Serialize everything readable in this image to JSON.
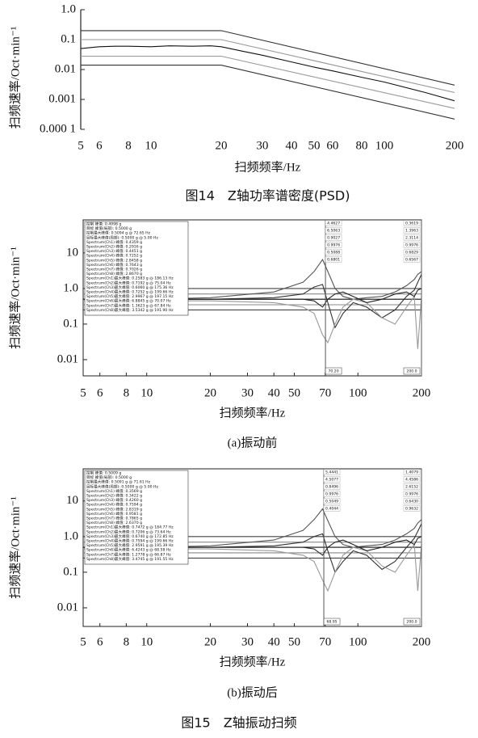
{
  "chart_data": [
    {
      "type": "line",
      "log_x": true,
      "log_y": true,
      "y_label": "扫频速率/Oct·min⁻¹",
      "x_label": "扫频频率/Hz",
      "caption": "图14　Z轴功率谱密度(PSD)",
      "xlim": [
        5,
        200
      ],
      "xticks": [
        5,
        6,
        8,
        10,
        20,
        30,
        40,
        50,
        60,
        80,
        100,
        200
      ],
      "ylim": [
        0.0001,
        1
      ],
      "yticks": [
        {
          "value": 1,
          "label": "1.0"
        },
        0.1,
        0.01,
        0.001,
        {
          "value": 0.0001,
          "label": "0.000 1"
        }
      ],
      "series": [
        {
          "color": "#333333",
          "x": [
            5,
            20,
            200
          ],
          "values": [
            0.2,
            0.2,
            0.003
          ]
        },
        {
          "color": "#999999",
          "x": [
            5,
            20,
            200
          ],
          "values": [
            0.1,
            0.1,
            0.0017
          ]
        },
        {
          "color": "#111111",
          "x": [
            5,
            6,
            7,
            8,
            10,
            12,
            15,
            18,
            20,
            25,
            30,
            40,
            50,
            60,
            80,
            100,
            150,
            200
          ],
          "values": [
            0.05,
            0.058,
            0.06,
            0.06,
            0.058,
            0.062,
            0.06,
            0.062,
            0.058,
            0.04,
            0.03,
            0.018,
            0.012,
            0.009,
            0.0055,
            0.0038,
            0.0017,
            0.0009
          ]
        },
        {
          "color": "#999999",
          "x": [
            5,
            20,
            200
          ],
          "values": [
            0.028,
            0.028,
            0.0005
          ]
        },
        {
          "color": "#333333",
          "x": [
            5,
            20,
            200
          ],
          "values": [
            0.014,
            0.014,
            0.00022
          ]
        }
      ]
    },
    {
      "type": "line",
      "log_x": true,
      "log_y": true,
      "y_label": "扫频速率/Oct·min⁻¹",
      "x_label": "扫频频率/Hz",
      "caption": "(a)振动前",
      "xlim": [
        5,
        200
      ],
      "xticks": [
        5,
        6,
        8,
        10,
        20,
        30,
        40,
        50,
        70,
        100,
        200
      ],
      "ylim": [
        0.0035,
        85
      ],
      "yticks": [
        10,
        {
          "value": 1,
          "label": "1.0"
        },
        0.1,
        0.01
      ],
      "series": [
        {
          "color": "#444444",
          "x": [
            5,
            200
          ],
          "values": [
            1.0,
            1.0
          ]
        },
        {
          "color": "#888888",
          "x": [
            5,
            200
          ],
          "values": [
            0.7,
            0.7
          ]
        },
        {
          "color": "#111111",
          "x": [
            5,
            200
          ],
          "values": [
            0.5,
            0.5
          ]
        },
        {
          "color": "#888888",
          "x": [
            5,
            200
          ],
          "values": [
            0.35,
            0.35
          ]
        },
        {
          "color": "#444444",
          "x": [
            5,
            200
          ],
          "values": [
            0.25,
            0.25
          ]
        },
        {
          "color": "#555555",
          "x": [
            5,
            10,
            20,
            40,
            55,
            62,
            68,
            72,
            78,
            85,
            95,
            110,
            130,
            150,
            170,
            185,
            192,
            200
          ],
          "values": [
            0.5,
            0.5,
            0.55,
            0.8,
            1.5,
            3,
            6.5,
            3,
            1,
            0.6,
            0.5,
            0.55,
            0.6,
            0.8,
            1.2,
            1.8,
            2.5,
            3
          ]
        },
        {
          "color": "#333333",
          "x": [
            5,
            10,
            20,
            40,
            55,
            62,
            68,
            72,
            78,
            85,
            95,
            110,
            130,
            150,
            170,
            185,
            192,
            200
          ],
          "values": [
            0.5,
            0.5,
            0.5,
            0.55,
            0.7,
            1.1,
            1.3,
            0.4,
            0.08,
            0.2,
            0.4,
            0.3,
            0.15,
            0.25,
            0.6,
            0.9,
            1.5,
            2.5
          ]
        },
        {
          "color": "#999999",
          "x": [
            5,
            10,
            20,
            40,
            55,
            62,
            68,
            72,
            78,
            85,
            95,
            110,
            130,
            150,
            170,
            185,
            192,
            200
          ],
          "values": [
            0.45,
            0.45,
            0.45,
            0.4,
            0.3,
            0.2,
            0.05,
            0.03,
            0.1,
            0.3,
            0.5,
            0.4,
            0.15,
            0.1,
            0.3,
            0.6,
            0.02,
            0.6
          ]
        },
        {
          "color": "#222222",
          "x": [
            5,
            10,
            20,
            40,
            55,
            62,
            68,
            72,
            78,
            85,
            95,
            110,
            130,
            150,
            170,
            185,
            192,
            200
          ],
          "values": [
            0.5,
            0.5,
            0.5,
            0.5,
            0.5,
            0.45,
            0.3,
            0.5,
            0.7,
            0.8,
            0.6,
            0.4,
            0.5,
            0.7,
            0.8,
            0.6,
            0.9,
            1.0
          ]
        }
      ],
      "legend_box": [
        "控制 峰值: 0.4998 g",
        "目标 峰值(局部): 0.5000 g",
        "控制最大峰值: 0.5094 g @ 72.65 Hz",
        "目标最大峰值(局部): 0.5000 g @ 5.00 Hz",
        "Spectrum(Ch1) 峰值: 0.4359 g",
        "Spectrum(Ch2) 峰值: 0.2916 g",
        "Spectrum(Ch3) 峰值: 0.4451 g",
        "Spectrum(Ch4) 峰值: 0.7252 g",
        "Spectrum(Ch5) 峰值: 2.8458 g",
        "Spectrum(Ch6) 峰值: 0.7643 g",
        "Spectrum(Ch7) 峰值: 0.7026 g",
        "Spectrum(Ch8) 峰值: 2.8670 g",
        "Spectrum(Ch1)最大峰值: 0.2583 g @ 186.13 Hz",
        "Spectrum(Ch2)最大峰值: 0.7192 g @ 75.04 Hz",
        "Spectrum(Ch3)最大峰值: 0.6060 g @ 175.36 Hz",
        "Spectrum(Ch4)最大峰值: 0.7252 g @ 199.66 Hz",
        "Spectrum(Ch5)最大峰值: 2.9967 g @ 197.15 Hz",
        "Spectrum(Ch6)最大峰值: 6.8845 g @ 70.07 Hz",
        "Spectrum(Ch7)最大峰值: 1.3623 g @ 67.84 Hz",
        "Spectrum(Ch8)最大峰值: 3.5342 g @ 191.90 Hz"
      ],
      "cursors": [
        {
          "x": {
            "value": 70.2,
            "label": "70.20"
          },
          "readouts": [
            "4.4627",
            "6.5063",
            "0.9027",
            "0.9976",
            "0.5088",
            "0.6801"
          ]
        },
        {
          "x": {
            "value": 200,
            "label": "200.0"
          },
          "readouts": [
            "0.3619",
            "1.3963",
            "2.3114",
            "0.9976",
            "0.6829",
            "0.6567"
          ]
        }
      ]
    },
    {
      "type": "line",
      "log_x": true,
      "log_y": true,
      "y_label": "扫频速率/Oct·min⁻¹",
      "x_label": "扫频频率/Hz",
      "caption": "(b)振动后",
      "xlim": [
        5,
        200
      ],
      "xticks": [
        5,
        6,
        8,
        10,
        20,
        30,
        40,
        50,
        70,
        100,
        200
      ],
      "ylim": [
        0.003,
        80
      ],
      "yticks": [
        10,
        {
          "value": 1,
          "label": "1.0"
        },
        0.1,
        0.01
      ],
      "series": [
        {
          "color": "#444444",
          "x": [
            5,
            200
          ],
          "values": [
            1.0,
            1.0
          ]
        },
        {
          "color": "#888888",
          "x": [
            5,
            200
          ],
          "values": [
            0.7,
            0.7
          ]
        },
        {
          "color": "#111111",
          "x": [
            5,
            200
          ],
          "values": [
            0.5,
            0.5
          ]
        },
        {
          "color": "#888888",
          "x": [
            5,
            200
          ],
          "values": [
            0.35,
            0.35
          ]
        },
        {
          "color": "#444444",
          "x": [
            5,
            200
          ],
          "values": [
            0.25,
            0.25
          ]
        },
        {
          "color": "#555555",
          "x": [
            5,
            10,
            20,
            40,
            55,
            62,
            68,
            72,
            78,
            85,
            95,
            110,
            130,
            150,
            170,
            185,
            192,
            200
          ],
          "values": [
            0.5,
            0.5,
            0.55,
            0.8,
            1.5,
            3,
            6,
            2.8,
            1,
            0.6,
            0.5,
            0.55,
            0.6,
            0.8,
            1.2,
            1.7,
            2.4,
            3
          ]
        },
        {
          "color": "#333333",
          "x": [
            5,
            10,
            20,
            40,
            55,
            62,
            68,
            72,
            78,
            85,
            95,
            110,
            130,
            150,
            170,
            185,
            192,
            200
          ],
          "values": [
            0.5,
            0.5,
            0.5,
            0.55,
            0.7,
            1.0,
            1.2,
            0.4,
            0.1,
            0.2,
            0.4,
            0.3,
            0.12,
            0.2,
            0.5,
            0.9,
            1.4,
            2.3
          ]
        },
        {
          "color": "#999999",
          "x": [
            5,
            10,
            20,
            40,
            55,
            62,
            68,
            72,
            78,
            85,
            95,
            110,
            130,
            150,
            170,
            185,
            192,
            200
          ],
          "values": [
            0.45,
            0.45,
            0.45,
            0.4,
            0.3,
            0.2,
            0.06,
            0.03,
            0.1,
            0.3,
            0.5,
            0.4,
            0.15,
            0.1,
            0.3,
            0.6,
            0.03,
            0.6
          ]
        },
        {
          "color": "#222222",
          "x": [
            5,
            10,
            20,
            40,
            55,
            62,
            68,
            72,
            78,
            85,
            95,
            110,
            130,
            150,
            170,
            185,
            192,
            200
          ],
          "values": [
            0.5,
            0.5,
            0.5,
            0.5,
            0.5,
            0.45,
            0.3,
            0.5,
            0.7,
            0.8,
            0.6,
            0.4,
            0.5,
            0.7,
            0.8,
            0.6,
            0.9,
            1.0
          ]
        }
      ],
      "legend_box": [
        "控制 峰值: 0.5009 g",
        "目标 峰值(局部): 0.5000 g",
        "控制最大峰值: 0.5091 g @ 71.61 Hz",
        "目标最大峰值(局部): 0.5000 g @ 5.00 Hz",
        "Spectrum(Ch1) 峰值: 0.3569 g",
        "Spectrum(Ch2) 峰值: 0.3422 g",
        "Spectrum(Ch3) 峰值: 0.4260 g",
        "Spectrum(Ch4) 峰值: 0.7594 g",
        "Spectrum(Ch5) 峰值: 2.8319 g",
        "Spectrum(Ch6) 峰值: 0.9581 g",
        "Spectrum(Ch7) 峰值: 0.7865 g",
        "Spectrum(Ch8) 峰值: 2.6370 g",
        "Spectrum(Ch1)最大峰值: 0.7472 g @ 184.77 Hz",
        "Spectrum(Ch2)最大峰值: 0.7206 g @ 73.64 Hz",
        "Spectrum(Ch3)最大峰值: 0.6740 g @ 172.85 Hz",
        "Spectrum(Ch4)最大峰值: 0.7594 g @ 199.66 Hz",
        "Spectrum(Ch5)最大峰值: 2.9591 g @ 195.39 Hz",
        "Spectrum(Ch6)最大峰值: 6.4243 g @ 68.58 Hz",
        "Spectrum(Ch7)最大峰值: 1.2778 g @ 66.87 Hz",
        "Spectrum(Ch8)最大峰值: 3.4745 g @ 191.55 Hz"
      ],
      "cursors": [
        {
          "x": {
            "value": 68.95,
            "label": "68.95"
          },
          "readouts": [
            "5.4441",
            "4.5077",
            "0.8496",
            "0.9976",
            "0.5049",
            "0.4044"
          ]
        },
        {
          "x": {
            "value": 200,
            "label": "200.0"
          },
          "readouts": [
            "1.4079",
            "4.4586",
            "2.6152",
            "0.9976",
            "0.6430",
            "0.9632"
          ]
        }
      ]
    }
  ],
  "figure_caption": "图15　Z轴振动扫频"
}
